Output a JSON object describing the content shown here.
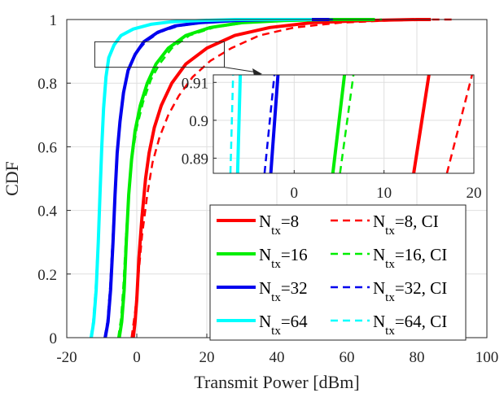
{
  "chart_data": {
    "type": "line",
    "title": "",
    "xlabel": "Transmit Power [dBm]",
    "ylabel": "CDF",
    "xlim": [
      -20,
      100
    ],
    "ylim": [
      0,
      1
    ],
    "xticks": [
      "-20",
      "0",
      "20",
      "40",
      "60",
      "80",
      "100"
    ],
    "yticks": [
      "0",
      "0.2",
      "0.4",
      "0.6",
      "0.8",
      "1"
    ],
    "grid": true,
    "legend_position": "bottom-right",
    "series": [
      {
        "name": "N_tx=8",
        "label_base": "N",
        "label_sub": "tx",
        "label_suffix": "=8",
        "color": "#ff0000",
        "dash": "solid",
        "x": [
          -1,
          -0.5,
          0,
          0.6,
          1.5,
          2.5,
          3.5,
          5,
          7,
          10,
          14,
          20,
          28,
          38,
          50,
          65,
          80,
          84
        ],
        "y": [
          0,
          0.05,
          0.12,
          0.25,
          0.38,
          0.5,
          0.58,
          0.66,
          0.73,
          0.8,
          0.86,
          0.91,
          0.95,
          0.975,
          0.99,
          0.997,
          1,
          1
        ]
      },
      {
        "name": "N_tx=8, CI",
        "label_base": "N",
        "label_sub": "tx",
        "label_suffix": "=8, CI",
        "color": "#ff0000",
        "dash": "dashed",
        "x": [
          -1.5,
          -0.5,
          0.5,
          1.5,
          3,
          4.5,
          6.5,
          9,
          12,
          16,
          21,
          27,
          35,
          45,
          58,
          72,
          85,
          90
        ],
        "y": [
          0,
          0.08,
          0.2,
          0.32,
          0.45,
          0.55,
          0.63,
          0.7,
          0.76,
          0.82,
          0.87,
          0.91,
          0.95,
          0.975,
          0.99,
          0.997,
          1,
          1
        ]
      },
      {
        "name": "N_tx=16",
        "label_base": "N",
        "label_sub": "tx",
        "label_suffix": "=16",
        "color": "#00ee00",
        "dash": "solid",
        "x": [
          -5,
          -4.3,
          -3.6,
          -3,
          -2.3,
          -1.5,
          -0.5,
          1,
          3,
          5.5,
          9,
          14,
          21,
          30,
          42,
          56,
          68
        ],
        "y": [
          0,
          0.05,
          0.15,
          0.3,
          0.45,
          0.56,
          0.65,
          0.73,
          0.8,
          0.86,
          0.91,
          0.95,
          0.975,
          0.99,
          0.997,
          1,
          1
        ]
      },
      {
        "name": "N_tx=16, CI",
        "label_base": "N",
        "label_sub": "tx",
        "label_suffix": "=16, CI",
        "color": "#00ee00",
        "dash": "dashed",
        "x": [
          -5.3,
          -4.5,
          -3.8,
          -3.1,
          -2.3,
          -1.3,
          0,
          1.8,
          4,
          6.5,
          10,
          15,
          22,
          31,
          43,
          57,
          70
        ],
        "y": [
          0,
          0.06,
          0.17,
          0.32,
          0.46,
          0.57,
          0.66,
          0.74,
          0.81,
          0.86,
          0.91,
          0.95,
          0.975,
          0.99,
          0.997,
          1,
          1
        ]
      },
      {
        "name": "N_tx=32",
        "label_base": "N",
        "label_sub": "tx",
        "label_suffix": "=32",
        "color": "#0000ee",
        "dash": "solid",
        "x": [
          -9,
          -8.2,
          -7.5,
          -6.8,
          -6.2,
          -5.6,
          -4.8,
          -3.8,
          -2.5,
          -0.5,
          2,
          6,
          11,
          18,
          28,
          40,
          55
        ],
        "y": [
          0,
          0.05,
          0.15,
          0.3,
          0.45,
          0.58,
          0.68,
          0.77,
          0.84,
          0.89,
          0.93,
          0.96,
          0.98,
          0.99,
          0.997,
          1,
          1
        ]
      },
      {
        "name": "N_tx=32, CI",
        "label_base": "N",
        "label_sub": "tx",
        "label_suffix": "=32, CI",
        "color": "#0000ee",
        "dash": "dashed",
        "x": [
          -9.2,
          -8.4,
          -7.6,
          -6.9,
          -6.2,
          -5.5,
          -4.7,
          -3.6,
          -2.2,
          -0.2,
          2.5,
          6.5,
          12,
          19,
          29,
          41,
          56
        ],
        "y": [
          0,
          0.05,
          0.16,
          0.31,
          0.46,
          0.59,
          0.69,
          0.78,
          0.85,
          0.895,
          0.93,
          0.96,
          0.98,
          0.99,
          0.997,
          1,
          1
        ]
      },
      {
        "name": "N_tx=64",
        "label_base": "N",
        "label_sub": "tx",
        "label_suffix": "=64",
        "color": "#00ffff",
        "dash": "solid",
        "x": [
          -13,
          -12.3,
          -11.6,
          -11,
          -10.5,
          -10,
          -9.5,
          -8.8,
          -8,
          -6.5,
          -4.5,
          -1,
          4,
          10,
          18,
          28,
          40,
          50
        ],
        "y": [
          0,
          0.05,
          0.15,
          0.3,
          0.45,
          0.6,
          0.72,
          0.82,
          0.88,
          0.92,
          0.95,
          0.97,
          0.985,
          0.993,
          0.997,
          1,
          1,
          1
        ]
      },
      {
        "name": "N_tx=64, CI",
        "label_base": "N",
        "label_sub": "tx",
        "label_suffix": "=64, CI",
        "color": "#00ffff",
        "dash": "dashed",
        "x": [
          -13.2,
          -12.5,
          -11.8,
          -11.1,
          -10.6,
          -10.1,
          -9.6,
          -8.9,
          -8.1,
          -6.6,
          -4.6,
          -1,
          4,
          10,
          18,
          28,
          40,
          50
        ],
        "y": [
          0,
          0.05,
          0.15,
          0.3,
          0.45,
          0.6,
          0.72,
          0.82,
          0.88,
          0.92,
          0.95,
          0.97,
          0.985,
          0.993,
          0.997,
          1,
          1,
          1
        ]
      }
    ],
    "inset": {
      "xlim": [
        -9,
        20
      ],
      "ylim": [
        0.886,
        0.912
      ],
      "xticks": [
        "0",
        "10",
        "20"
      ],
      "yticks": [
        "0.89",
        "0.9",
        "0.91"
      ],
      "zoom_region": {
        "xlim": [
          -12,
          25
        ],
        "ylim": [
          0.85,
          0.93
        ]
      },
      "series": [
        {
          "color": "#ff0000",
          "dash": "solid",
          "x": [
            13.3,
            15.0
          ],
          "y": [
            0.886,
            0.912
          ]
        },
        {
          "color": "#ff0000",
          "dash": "dashed",
          "x": [
            17.0,
            19.8
          ],
          "y": [
            0.886,
            0.912
          ]
        },
        {
          "color": "#00ee00",
          "dash": "solid",
          "x": [
            4.3,
            5.6
          ],
          "y": [
            0.886,
            0.912
          ]
        },
        {
          "color": "#00ee00",
          "dash": "dashed",
          "x": [
            5.1,
            6.6
          ],
          "y": [
            0.886,
            0.912
          ]
        },
        {
          "color": "#0000ee",
          "dash": "solid",
          "x": [
            -2.6,
            -1.8
          ],
          "y": [
            0.886,
            0.912
          ]
        },
        {
          "color": "#0000ee",
          "dash": "dashed",
          "x": [
            -3.3,
            -2.2
          ],
          "y": [
            0.886,
            0.912
          ]
        },
        {
          "color": "#00ffff",
          "dash": "solid",
          "x": [
            -6.3,
            -6.0
          ],
          "y": [
            0.886,
            0.912
          ]
        },
        {
          "color": "#00ffff",
          "dash": "dashed",
          "x": [
            -7.1,
            -6.8
          ],
          "y": [
            0.886,
            0.912
          ]
        }
      ]
    }
  }
}
